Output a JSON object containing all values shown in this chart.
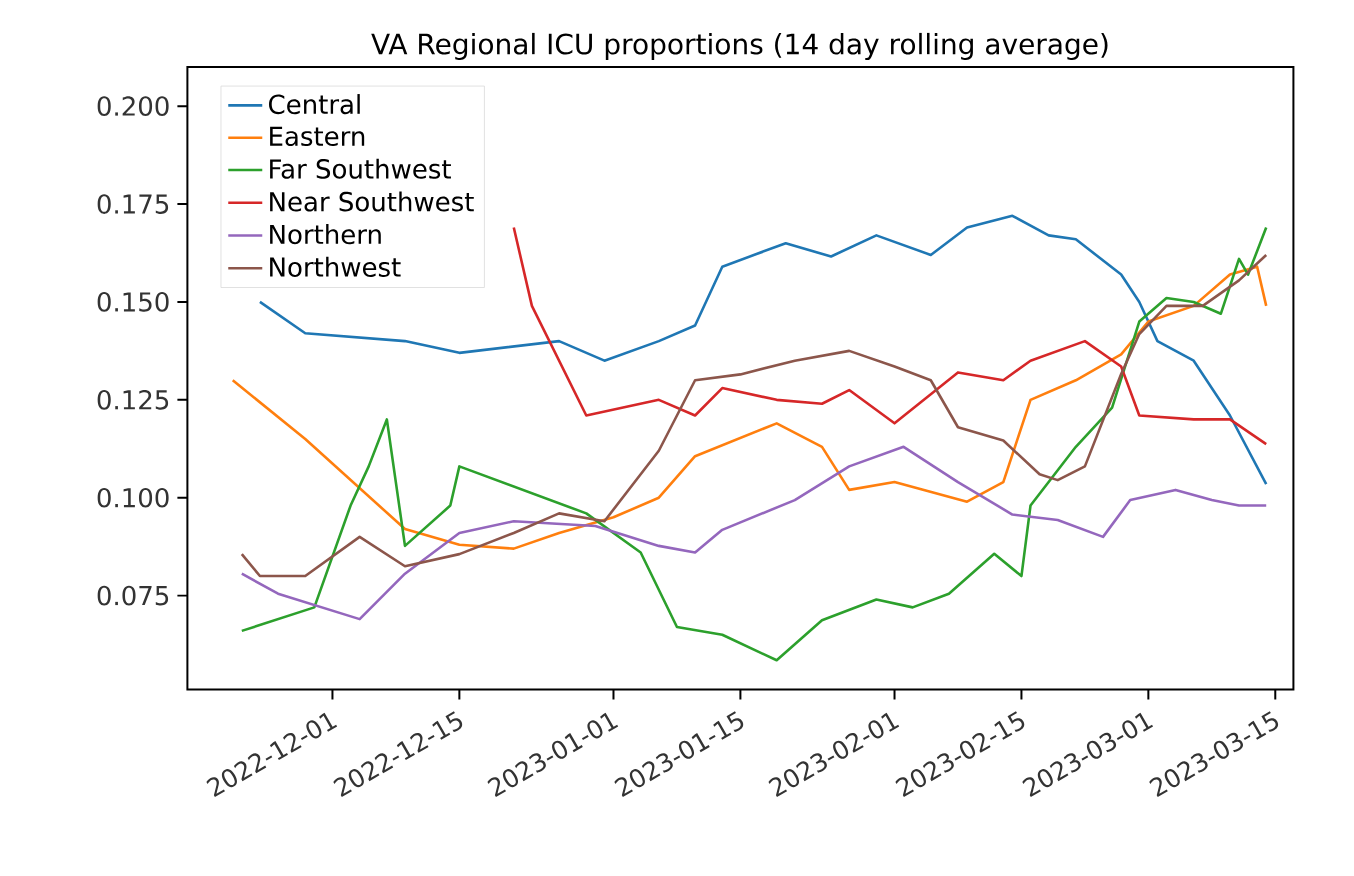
{
  "chart_data": {
    "type": "line",
    "title": "VA Regional ICU proportions (14 day rolling average)",
    "xlim": [
      "2022-11-15",
      "2023-03-17"
    ],
    "ylim": [
      0.051,
      0.21
    ],
    "xticks": [
      "2022-12-01",
      "2022-12-15",
      "2023-01-01",
      "2023-01-15",
      "2023-02-01",
      "2023-02-15",
      "2023-03-01",
      "2023-03-15"
    ],
    "yticks": [
      {
        "value": 0.075,
        "label": "0.075"
      },
      {
        "value": 0.1,
        "label": "0.100"
      },
      {
        "value": 0.125,
        "label": "0.125"
      },
      {
        "value": 0.15,
        "label": "0.150"
      },
      {
        "value": 0.175,
        "label": "0.175"
      },
      {
        "value": 0.2,
        "label": "0.200"
      }
    ],
    "legend": "top left",
    "grid": false,
    "marker": "none",
    "line_style": "solid",
    "series": [
      {
        "name": "Central",
        "color": "#1f77b4",
        "x": [
          "2022-11-23",
          "2022-11-28",
          "2022-12-09",
          "2022-12-15",
          "2022-12-26",
          "2022-12-31",
          "2023-01-06",
          "2023-01-10",
          "2023-01-13",
          "2023-01-20",
          "2023-01-25",
          "2023-01-30",
          "2023-02-05",
          "2023-02-09",
          "2023-02-14",
          "2023-02-18",
          "2023-02-21",
          "2023-02-26",
          "2023-02-28",
          "2023-03-02",
          "2023-03-06",
          "2023-03-10",
          "2023-03-14"
        ],
        "values": [
          0.15,
          0.142,
          0.14,
          0.137,
          0.14,
          0.135,
          0.14,
          0.144,
          0.159,
          0.165,
          0.1616,
          0.167,
          0.162,
          0.169,
          0.172,
          0.167,
          0.166,
          0.157,
          0.15,
          0.14,
          0.135,
          0.121,
          0.1035
        ]
      },
      {
        "name": "Eastern",
        "color": "#ff7f0e",
        "x": [
          "2022-11-20",
          "2022-11-28",
          "2022-12-09",
          "2022-12-15",
          "2022-12-21",
          "2022-12-26",
          "2023-01-01",
          "2023-01-06",
          "2023-01-10",
          "2023-01-19",
          "2023-01-24",
          "2023-01-27",
          "2023-02-01",
          "2023-02-09",
          "2023-02-13",
          "2023-02-16",
          "2023-02-21",
          "2023-02-26",
          "2023-03-01",
          "2023-03-06",
          "2023-03-10",
          "2023-03-13",
          "2023-03-14"
        ],
        "values": [
          0.13,
          0.115,
          0.092,
          0.088,
          0.087,
          0.091,
          0.095,
          0.1,
          0.1106,
          0.119,
          0.113,
          0.102,
          0.104,
          0.099,
          0.104,
          0.125,
          0.13,
          0.1366,
          0.145,
          0.149,
          0.157,
          0.159,
          0.149
        ]
      },
      {
        "name": "Far Southwest",
        "color": "#2ca02c",
        "x": [
          "2022-11-21",
          "2022-11-29",
          "2022-12-03",
          "2022-12-05",
          "2022-12-07",
          "2022-12-09",
          "2022-12-14",
          "2022-12-15",
          "2022-12-29",
          "2023-01-04",
          "2023-01-08",
          "2023-01-13",
          "2023-01-19",
          "2023-01-24",
          "2023-01-30",
          "2023-02-03",
          "2023-02-07",
          "2023-02-12",
          "2023-02-15",
          "2023-02-16",
          "2023-02-21",
          "2023-02-25",
          "2023-02-28",
          "2023-03-03",
          "2023-03-06",
          "2023-03-09",
          "2023-03-11",
          "2023-03-12",
          "2023-03-14"
        ],
        "values": [
          0.066,
          0.072,
          0.098,
          0.108,
          0.12,
          0.0877,
          0.098,
          0.108,
          0.096,
          0.086,
          0.067,
          0.065,
          0.0585,
          0.0687,
          0.074,
          0.072,
          0.0755,
          0.0857,
          0.08,
          0.098,
          0.113,
          0.123,
          0.145,
          0.151,
          0.15,
          0.147,
          0.161,
          0.157,
          0.169
        ]
      },
      {
        "name": "Near Southwest",
        "color": "#d62728",
        "x": [
          "2022-12-21",
          "2022-12-23",
          "2022-12-29",
          "2023-01-06",
          "2023-01-10",
          "2023-01-13",
          "2023-01-19",
          "2023-01-24",
          "2023-01-27",
          "2023-02-01",
          "2023-02-08",
          "2023-02-13",
          "2023-02-16",
          "2023-02-22",
          "2023-02-26",
          "2023-02-28",
          "2023-03-06",
          "2023-03-10",
          "2023-03-14"
        ],
        "values": [
          0.169,
          0.149,
          0.121,
          0.125,
          0.121,
          0.128,
          0.125,
          0.124,
          0.1275,
          0.119,
          0.132,
          0.13,
          0.135,
          0.14,
          0.1335,
          0.121,
          0.12,
          0.12,
          0.1137
        ]
      },
      {
        "name": "Northern",
        "color": "#9467bd",
        "x": [
          "2022-11-21",
          "2022-11-25",
          "2022-12-04",
          "2022-12-09",
          "2022-12-15",
          "2022-12-21",
          "2022-12-30",
          "2023-01-06",
          "2023-01-10",
          "2023-01-13",
          "2023-01-21",
          "2023-01-27",
          "2023-02-02",
          "2023-02-08",
          "2023-02-14",
          "2023-02-19",
          "2023-02-24",
          "2023-02-27",
          "2023-03-04",
          "2023-03-08",
          "2023-03-11",
          "2023-03-14"
        ],
        "values": [
          0.0806,
          0.0755,
          0.069,
          0.0806,
          0.091,
          0.094,
          0.0928,
          0.0877,
          0.086,
          0.0918,
          0.0994,
          0.108,
          0.113,
          0.104,
          0.0957,
          0.0943,
          0.09,
          0.0994,
          0.102,
          0.0994,
          0.098,
          0.098
        ]
      },
      {
        "name": "Northwest",
        "color": "#8c564b",
        "x": [
          "2022-11-21",
          "2022-11-23",
          "2022-11-28",
          "2022-12-04",
          "2022-12-09",
          "2022-12-15",
          "2022-12-21",
          "2022-12-26",
          "2022-12-31",
          "2023-01-06",
          "2023-01-10",
          "2023-01-15",
          "2023-01-21",
          "2023-01-27",
          "2023-02-01",
          "2023-02-05",
          "2023-02-08",
          "2023-02-13",
          "2023-02-17",
          "2023-02-19",
          "2023-02-22",
          "2023-02-26",
          "2023-02-28",
          "2023-03-03",
          "2023-03-07",
          "2023-03-11",
          "2023-03-14"
        ],
        "values": [
          0.0856,
          0.08,
          0.08,
          0.09,
          0.0825,
          0.0856,
          0.091,
          0.096,
          0.094,
          0.112,
          0.13,
          0.1315,
          0.135,
          0.1375,
          0.1335,
          0.13,
          0.118,
          0.1146,
          0.106,
          0.1045,
          0.108,
          0.1316,
          0.1418,
          0.149,
          0.149,
          0.1555,
          0.162
        ]
      }
    ]
  }
}
